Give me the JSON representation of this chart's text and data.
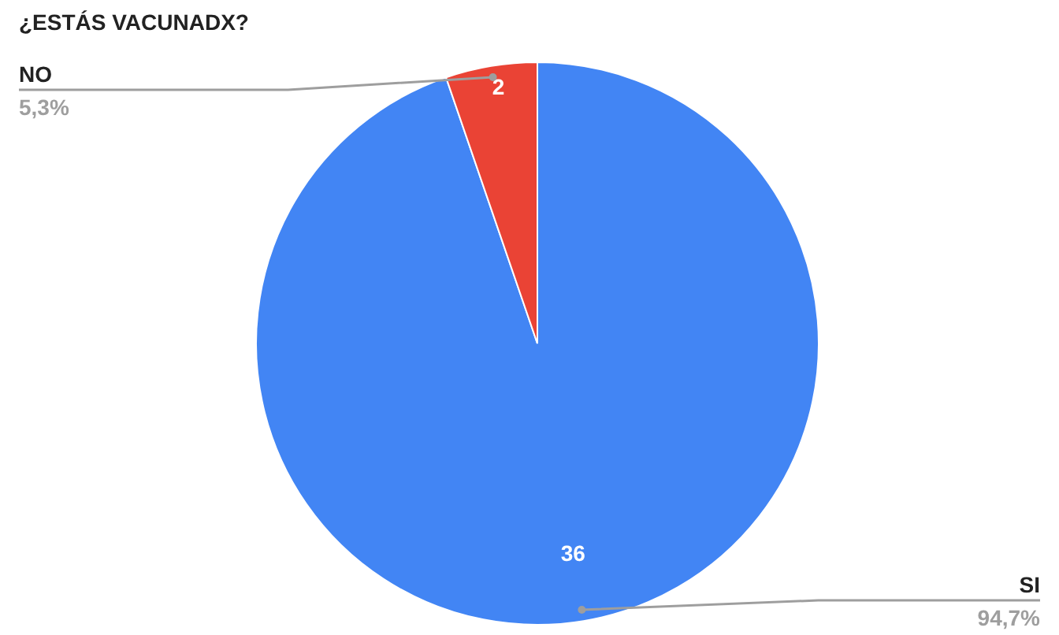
{
  "chart_data": {
    "type": "pie",
    "title": "¿ESTÁS VACUNADX?",
    "categories": [
      "SI",
      "NO"
    ],
    "values": [
      36,
      2
    ],
    "colors": [
      "#4285f4",
      "#ea4335"
    ],
    "value_labels": [
      "36",
      "2"
    ],
    "annotations": [
      "94,7%",
      "5,3%"
    ],
    "legend": false
  }
}
